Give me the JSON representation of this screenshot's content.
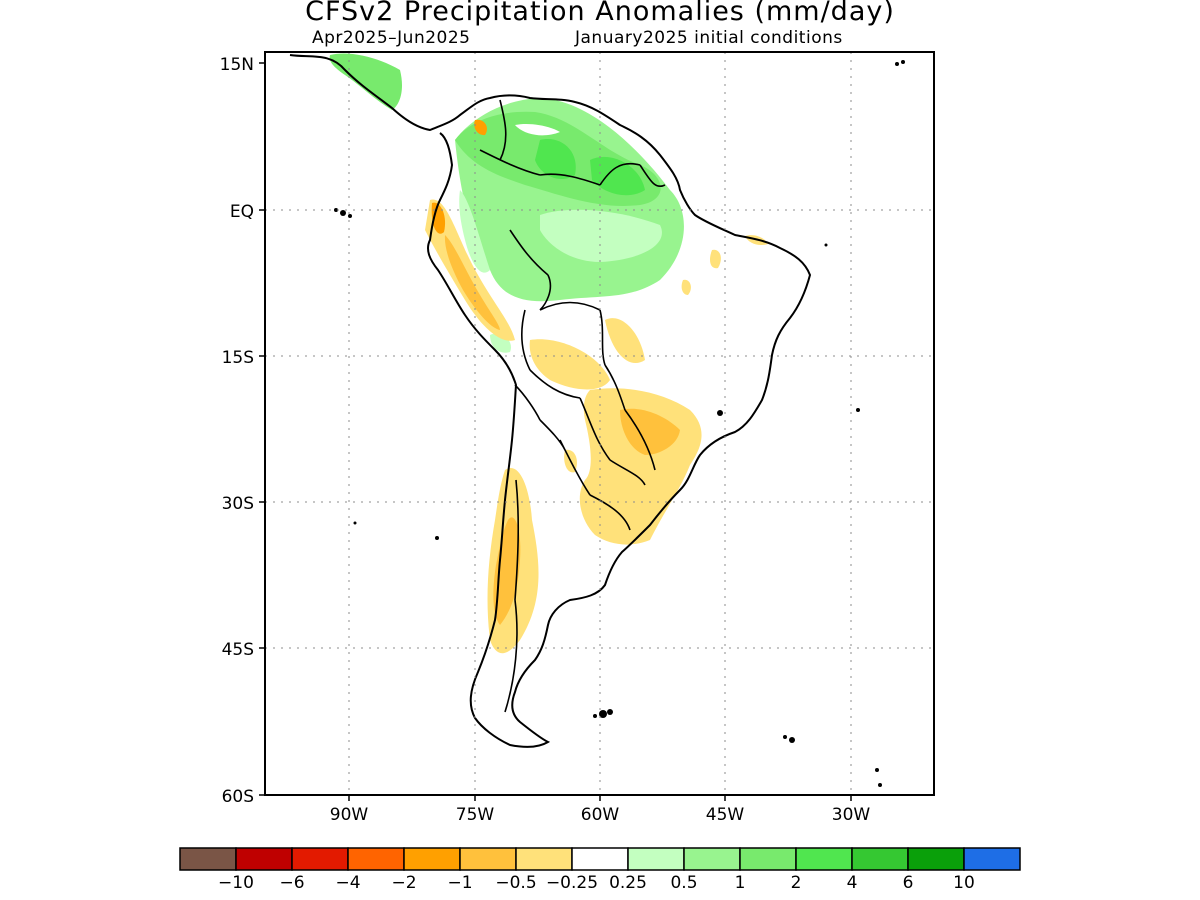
{
  "title": "CFSv2 Precipitation Anomalies (mm/day)",
  "subtitle_left": "Apr2025–Jun2025",
  "subtitle_right": "January2025 initial conditions",
  "map": {
    "lat_labels": [
      "15N",
      "EQ",
      "15S",
      "30S",
      "45S",
      "60S"
    ],
    "lon_labels": [
      "90W",
      "75W",
      "60W",
      "45W",
      "30W"
    ],
    "gridlines": "dotted",
    "lon_range": [
      "100W",
      "20W"
    ],
    "lat_range": [
      "60S",
      "15N"
    ]
  },
  "colorbar": {
    "colors": [
      "#7a5546",
      "#bf0000",
      "#e31a00",
      "#ff6400",
      "#ffa000",
      "#ffc13c",
      "#ffe17a",
      "#ffffff",
      "#c3ffc0",
      "#98f48f",
      "#78ea6d",
      "#50e64f",
      "#35c832",
      "#0aa00a",
      "#1e6ee6"
    ],
    "labels": [
      "−10",
      "−6",
      "−4",
      "−2",
      "−1",
      "−0.5",
      "−0.25",
      "0.25",
      "0.5",
      "1",
      "2",
      "4",
      "6",
      "10"
    ]
  }
}
